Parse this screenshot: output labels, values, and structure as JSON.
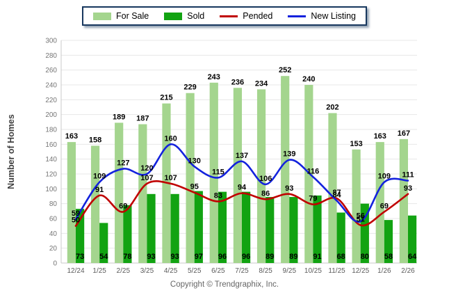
{
  "legend": {
    "items": [
      {
        "label": "For Sale",
        "swatch": "bar",
        "color_key": "for_sale"
      },
      {
        "label": "Sold",
        "swatch": "bar",
        "color_key": "sold"
      },
      {
        "label": "Pended",
        "swatch": "line",
        "color_key": "pended"
      },
      {
        "label": "New Listing",
        "swatch": "line",
        "color_key": "new_listing"
      }
    ]
  },
  "y_axis": {
    "title": "Number of Homes",
    "min": 0,
    "max": 300,
    "step": 20
  },
  "footer": {
    "copyright": "Copyright © Trendgraphix, Inc."
  },
  "colors": {
    "for_sale": "#A4D58E",
    "sold": "#12A312",
    "pended": "#C00000",
    "new_listing": "#1322DD",
    "grid": "#E7E7E7",
    "axis": "#C8C8C8",
    "tick_text": "#757575",
    "xtick_text": "#5A5A5A",
    "value_text": "#000000",
    "axis_title_text": "#3F3F3F"
  },
  "chart_data": {
    "type": "bar+line",
    "title": "",
    "xlabel": "",
    "ylabel": "Number of Homes",
    "ylim": [
      0,
      300
    ],
    "ytick_step": 20,
    "grid": true,
    "legend_position": "top",
    "categories": [
      "12/24",
      "1/25",
      "2/25",
      "3/25",
      "4/25",
      "5/25",
      "6/25",
      "7/25",
      "8/25",
      "9/25",
      "10/25",
      "11/25",
      "12/25",
      "1/26",
      "2/26"
    ],
    "series": [
      {
        "name": "For Sale",
        "type": "bar",
        "color_key": "for_sale",
        "values": [
          163,
          158,
          189,
          187,
          215,
          229,
          243,
          236,
          234,
          252,
          240,
          202,
          153,
          163,
          167
        ]
      },
      {
        "name": "Sold",
        "type": "bar",
        "color_key": "sold",
        "values": [
          73,
          54,
          78,
          93,
          93,
          97,
          96,
          96,
          89,
          89,
          91,
          68,
          80,
          58,
          64
        ]
      },
      {
        "name": "Pended",
        "type": "line",
        "color_key": "pended",
        "values": [
          50,
          91,
          69,
          107,
          107,
          95,
          83,
          94,
          86,
          93,
          79,
          87,
          51,
          69,
          93
        ]
      },
      {
        "name": "New Listing",
        "type": "line",
        "color_key": "new_listing",
        "values": [
          59,
          109,
          127,
          120,
          160,
          130,
          115,
          137,
          106,
          139,
          116,
          84,
          56,
          109,
          111
        ]
      }
    ]
  }
}
